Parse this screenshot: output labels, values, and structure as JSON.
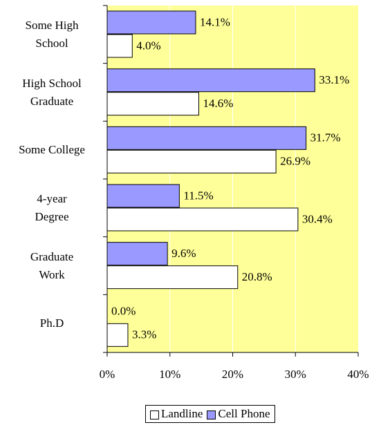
{
  "chart_data": {
    "type": "hbar",
    "categories": [
      "Some High\nSchool",
      "High School\nGraduate",
      "Some College",
      "4-year\nDegree",
      "Graduate\nWork",
      "Ph.D"
    ],
    "series": [
      {
        "name": "Landline",
        "color": "#ffffff",
        "values": [
          4.0,
          14.6,
          26.9,
          30.4,
          20.8,
          3.3
        ],
        "value_labels": [
          "4.0%",
          "14.6%",
          "26.9%",
          "30.4%",
          "20.8%",
          "3.3%"
        ]
      },
      {
        "name": "Cell Phone",
        "color": "#9999ff",
        "values": [
          14.1,
          33.1,
          31.7,
          11.5,
          9.6,
          0.0
        ],
        "value_labels": [
          "14.1%",
          "33.1%",
          "31.7%",
          "11.5%",
          "9.6%",
          "0.0%"
        ]
      }
    ],
    "xlim": [
      0,
      40
    ],
    "xticks": [
      {
        "value": 0,
        "label": "0%"
      },
      {
        "value": 10,
        "label": "10%"
      },
      {
        "value": 20,
        "label": "20%"
      },
      {
        "value": 30,
        "label": "30%"
      },
      {
        "value": 40,
        "label": "40%"
      }
    ],
    "grid": true,
    "plot_background": "#ffff99",
    "legend": "bottom"
  }
}
